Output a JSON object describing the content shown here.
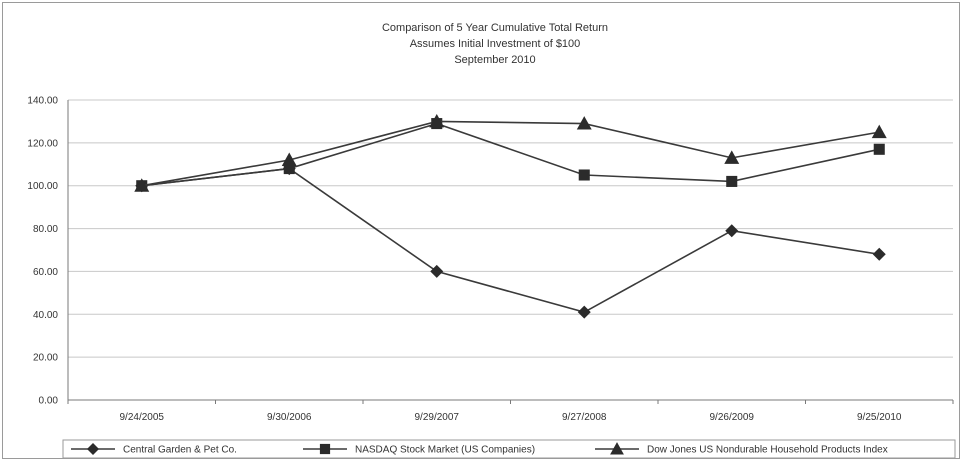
{
  "chart_data": {
    "type": "line",
    "title": "Comparison of 5 Year Cumulative Total Return",
    "subtitle": [
      "Assumes Initial Investment of $100",
      "September 2010"
    ],
    "xlabel": "",
    "ylabel": "",
    "categories": [
      "9/24/2005",
      "9/30/2006",
      "9/29/2007",
      "9/27/2008",
      "9/26/2009",
      "9/25/2010"
    ],
    "ylim": [
      0,
      140
    ],
    "yticks": [
      "0.00",
      "20.00",
      "40.00",
      "60.00",
      "80.00",
      "100.00",
      "120.00",
      "140.00"
    ],
    "grid": "horizontal",
    "legend_position": "bottom",
    "series": [
      {
        "name": "Central Garden & Pet Co.",
        "marker": "diamond",
        "color": "#333333",
        "values": [
          100,
          108,
          60,
          41,
          79,
          68
        ]
      },
      {
        "name": "NASDAQ Stock Market (US Companies)",
        "marker": "square",
        "color": "#333333",
        "values": [
          100,
          108,
          129,
          105,
          102,
          117
        ]
      },
      {
        "name": "Dow Jones US Nondurable Household Products Index",
        "marker": "triangle",
        "color": "#333333",
        "values": [
          100,
          112,
          130,
          129,
          113,
          125
        ]
      }
    ]
  }
}
